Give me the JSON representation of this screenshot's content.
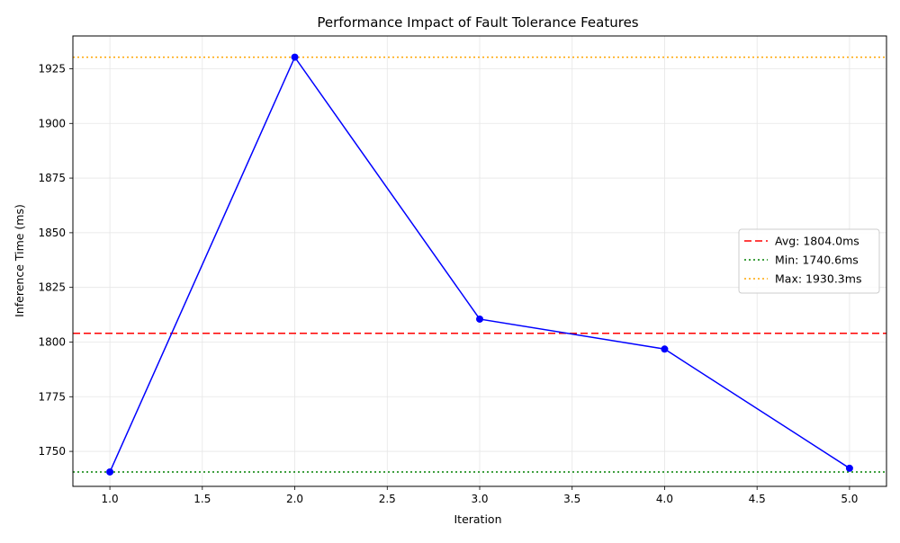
{
  "chart_data": {
    "type": "line",
    "title": "Performance Impact of Fault Tolerance Features",
    "xlabel": "Iteration",
    "ylabel": "Inference Time (ms)",
    "xlim": [
      0.8,
      5.2
    ],
    "ylim": [
      1734.0,
      1940.0
    ],
    "x_ticks": [
      1.0,
      1.5,
      2.0,
      2.5,
      3.0,
      3.5,
      4.0,
      4.5,
      5.0
    ],
    "y_ticks": [
      1750,
      1775,
      1800,
      1825,
      1850,
      1875,
      1900,
      1925
    ],
    "grid": true,
    "series": [
      {
        "x": [
          1,
          2,
          3,
          4,
          5
        ],
        "values": [
          1740.6,
          1930.3,
          1810.5,
          1796.8,
          1742.3
        ],
        "color": "#0000ff",
        "marker": "circle"
      }
    ],
    "reference_lines": [
      {
        "label": "Avg: 1804.0ms",
        "value": 1804.0,
        "color": "#ff0000",
        "style": "dashed"
      },
      {
        "label": "Min: 1740.6ms",
        "value": 1740.6,
        "color": "#008000",
        "style": "dotted"
      },
      {
        "label": "Max: 1930.3ms",
        "value": 1930.3,
        "color": "#ffa500",
        "style": "dotted"
      }
    ],
    "legend_position": "center-right"
  }
}
